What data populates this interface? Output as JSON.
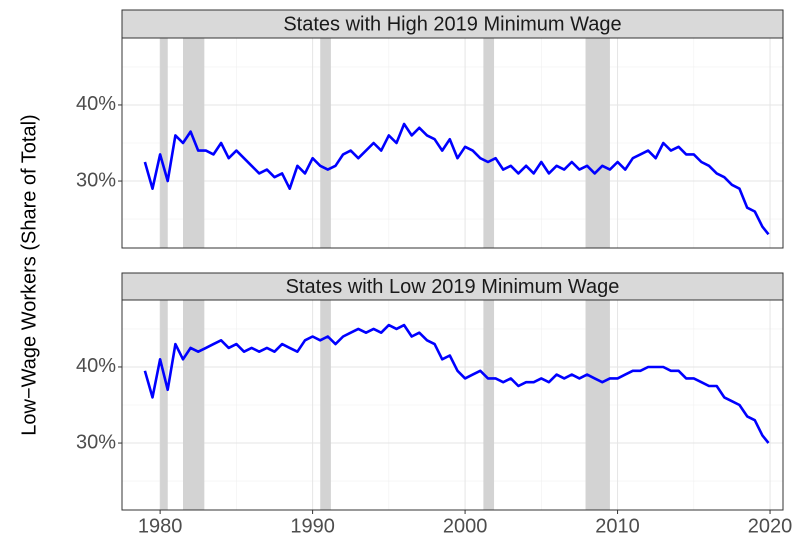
{
  "chart_data": {
    "type": "line",
    "ylabel": "Low−Wage Workers (Share of Total)",
    "xlim": [
      1977.5,
      2020.85
    ],
    "xticks": [
      1980,
      1990,
      2000,
      2010,
      2020
    ],
    "xticks_minor": [
      1985,
      1995,
      2005,
      2015
    ],
    "shaded_regions": [
      [
        1980.0,
        1980.5
      ],
      [
        1981.5,
        1982.9
      ],
      [
        1990.5,
        1991.2
      ],
      [
        2001.2,
        2001.9
      ],
      [
        2007.9,
        2009.5
      ]
    ],
    "shade_color": "#d3d3d3",
    "panels": [
      {
        "title": "States with High 2019 Minimum Wage",
        "color": "#0000ff",
        "ylim": [
          21.2,
          48.8
        ],
        "yticks": [
          {
            "value": 30,
            "label": "30%"
          },
          {
            "value": 40,
            "label": "40%"
          }
        ],
        "yticks_minor": [
          25,
          35,
          45
        ],
        "x": [
          1979,
          1979.5,
          1980,
          1980.5,
          1981,
          1981.5,
          1982,
          1982.5,
          1983,
          1983.5,
          1984,
          1984.5,
          1985,
          1985.5,
          1986,
          1986.5,
          1987,
          1987.5,
          1988,
          1988.5,
          1989,
          1989.5,
          1990,
          1990.5,
          1991,
          1991.5,
          1992,
          1992.5,
          1993,
          1993.5,
          1994,
          1994.5,
          1995,
          1995.5,
          1996,
          1996.5,
          1997,
          1997.5,
          1998,
          1998.5,
          1999,
          1999.5,
          2000,
          2000.5,
          2001,
          2001.5,
          2002,
          2002.5,
          2003,
          2003.5,
          2004,
          2004.5,
          2005,
          2005.5,
          2006,
          2006.5,
          2007,
          2007.5,
          2008,
          2008.5,
          2009,
          2009.5,
          2010,
          2010.5,
          2011,
          2011.5,
          2012,
          2012.5,
          2013,
          2013.5,
          2014,
          2014.5,
          2015,
          2015.5,
          2016,
          2016.5,
          2017,
          2017.5,
          2018,
          2018.5,
          2019,
          2019.5,
          2019.9
        ],
        "values": [
          32.5,
          29,
          33.5,
          30,
          36,
          35,
          36.5,
          34,
          34,
          33.5,
          35,
          33,
          34,
          33,
          32,
          31,
          31.5,
          30.5,
          31,
          29,
          32,
          31,
          33,
          32,
          31.5,
          32,
          33.5,
          34,
          33,
          34,
          35,
          34,
          36,
          35,
          37.5,
          36,
          37,
          36,
          35.5,
          34,
          35.5,
          33,
          34.5,
          34,
          33,
          32.5,
          33,
          31.5,
          32,
          31,
          32,
          31,
          32.5,
          31,
          32,
          31.5,
          32.5,
          31.5,
          32,
          31,
          32,
          31.5,
          32.5,
          31.5,
          33,
          33.5,
          34,
          33,
          35,
          34,
          34.5,
          33.5,
          33.5,
          32.5,
          32,
          31,
          30.5,
          29.5,
          29,
          26.5,
          26,
          24,
          23
        ]
      },
      {
        "title": "States with Low 2019 Minimum Wage",
        "color": "#0000ff",
        "ylim": [
          21.2,
          48.8
        ],
        "yticks": [
          {
            "value": 30,
            "label": "30%"
          },
          {
            "value": 40,
            "label": "40%"
          }
        ],
        "yticks_minor": [
          25,
          35,
          45
        ],
        "x": [
          1979,
          1979.5,
          1980,
          1980.5,
          1981,
          1981.5,
          1982,
          1982.5,
          1983,
          1983.5,
          1984,
          1984.5,
          1985,
          1985.5,
          1986,
          1986.5,
          1987,
          1987.5,
          1988,
          1988.5,
          1989,
          1989.5,
          1990,
          1990.5,
          1991,
          1991.5,
          1992,
          1992.5,
          1993,
          1993.5,
          1994,
          1994.5,
          1995,
          1995.5,
          1996,
          1996.5,
          1997,
          1997.5,
          1998,
          1998.5,
          1999,
          1999.5,
          2000,
          2000.5,
          2001,
          2001.5,
          2002,
          2002.5,
          2003,
          2003.5,
          2004,
          2004.5,
          2005,
          2005.5,
          2006,
          2006.5,
          2007,
          2007.5,
          2008,
          2008.5,
          2009,
          2009.5,
          2010,
          2010.5,
          2011,
          2011.5,
          2012,
          2012.5,
          2013,
          2013.5,
          2014,
          2014.5,
          2015,
          2015.5,
          2016,
          2016.5,
          2017,
          2017.5,
          2018,
          2018.5,
          2019,
          2019.5,
          2019.9
        ],
        "values": [
          39.5,
          36,
          41,
          37,
          43,
          41,
          42.5,
          42,
          42.5,
          43,
          43.5,
          42.5,
          43,
          42,
          42.5,
          42,
          42.5,
          42,
          43,
          42.5,
          42,
          43.5,
          44,
          43.5,
          44,
          43,
          44,
          44.5,
          45,
          44.5,
          45,
          44.5,
          45.5,
          45,
          45.5,
          44,
          44.5,
          43.5,
          43,
          41,
          41.5,
          39.5,
          38.5,
          39,
          39.5,
          38.5,
          38.5,
          38,
          38.5,
          37.5,
          38,
          38,
          38.5,
          38,
          39,
          38.5,
          39,
          38.5,
          39,
          38.5,
          38,
          38.5,
          38.5,
          39,
          39.5,
          39.5,
          40,
          40,
          40,
          39.5,
          39.5,
          38.5,
          38.5,
          38,
          37.5,
          37.5,
          36,
          35.5,
          35,
          33.5,
          33,
          31,
          30
        ]
      }
    ]
  }
}
